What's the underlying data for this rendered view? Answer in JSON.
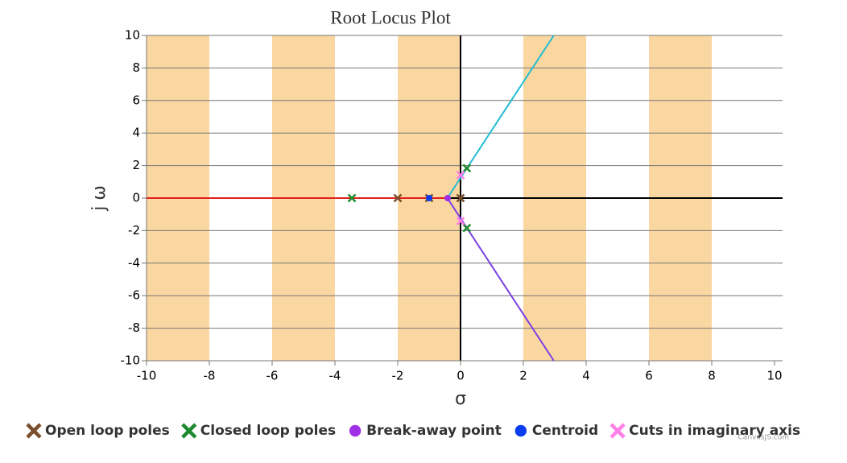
{
  "chart_data": {
    "type": "scatter",
    "title": "Root Locus Plot",
    "x_label": "σ",
    "y_label": "j ω",
    "xlim": [
      -10,
      10
    ],
    "xticks": [
      -10,
      -8,
      -6,
      -4,
      -2,
      0,
      2,
      4,
      6,
      8,
      10
    ],
    "ylim": [
      -10,
      10
    ],
    "yticks": [
      -10,
      -8,
      -6,
      -4,
      -2,
      0,
      2,
      4,
      6,
      8,
      10
    ],
    "grid": true,
    "legend": "bottom",
    "strip_color": "#fad7a0",
    "strips": [
      [
        -10,
        -8
      ],
      [
        -6,
        -4
      ],
      [
        -2,
        0
      ],
      [
        2,
        4
      ],
      [
        6,
        8
      ]
    ],
    "lines": [
      {
        "color": "#e0201a",
        "x": [
          -10,
          -0.42
        ],
        "values": [
          0,
          0
        ]
      },
      {
        "color": "#1fbcd2",
        "x": [
          -0.42,
          2.97
        ],
        "values": [
          0,
          10
        ]
      },
      {
        "color": "#7b3fe4",
        "x": [
          -0.42,
          2.97
        ],
        "values": [
          0,
          -10
        ]
      }
    ],
    "series": [
      {
        "name": "Open loop poles",
        "color": "#7b4f2c",
        "marker": "cross",
        "x": [
          0,
          -1,
          -2
        ],
        "values": [
          0,
          0,
          0
        ]
      },
      {
        "name": "Closed loop poles",
        "color": "#1e8a2e",
        "marker": "cross",
        "x": [
          -3.46,
          0.2,
          0.2
        ],
        "values": [
          0,
          1.84,
          -1.84
        ]
      },
      {
        "name": "Break-away point",
        "color": "#a030e8",
        "marker": "circle",
        "x": [
          -0.41
        ],
        "values": [
          0
        ]
      },
      {
        "name": "Centroid",
        "color": "#0a3cf0",
        "marker": "circle",
        "x": [
          -1
        ],
        "values": [
          0
        ]
      },
      {
        "name": "Cuts in imaginary axis",
        "color": "#ff80e8",
        "marker": "cross",
        "x": [
          0,
          0
        ],
        "values": [
          1.41,
          -1.41
        ]
      }
    ],
    "credit": "CanvasJS.com"
  }
}
